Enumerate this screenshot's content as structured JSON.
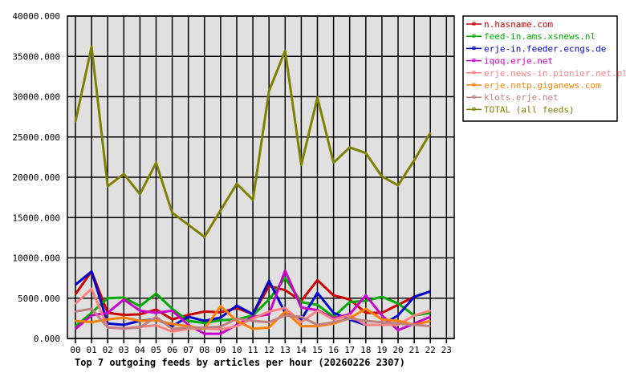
{
  "chart_data": {
    "type": "line",
    "title": "Top 7 outgoing feeds by articles per hour (20260226 2307)",
    "xlabel": "",
    "ylabel": "",
    "ylim": [
      0,
      40000
    ],
    "y_ticks": [
      "0.000",
      "5000.000",
      "10000.000",
      "15000.000",
      "20000.000",
      "25000.000",
      "30000.000",
      "35000.000",
      "40000.000"
    ],
    "x_ticks": [
      "00",
      "01",
      "02",
      "03",
      "04",
      "05",
      "06",
      "07",
      "08",
      "09",
      "10",
      "11",
      "12",
      "13",
      "14",
      "15",
      "16",
      "17",
      "18",
      "19",
      "20",
      "21",
      "22",
      "23"
    ],
    "grid": true,
    "legend_position": "right",
    "plot_background": "#e0e0e0",
    "series": [
      {
        "name": "n.hasname.com",
        "color": "#cc0000",
        "values": [
          5500,
          8320,
          3180,
          2920,
          3000,
          3590,
          2370,
          2920,
          3340,
          3250,
          3780,
          3000,
          6500,
          6000,
          4670,
          7230,
          5350,
          4840,
          3180,
          3180,
          4180,
          5170,
          5840
        ]
      },
      {
        "name": "feed-in.ams.xsnews.nl",
        "color": "#00aa00",
        "values": [
          1530,
          3180,
          5000,
          5080,
          4010,
          5570,
          3680,
          2190,
          1920,
          2260,
          2360,
          2860,
          4840,
          7500,
          4510,
          4180,
          2690,
          4510,
          4670,
          5170,
          4340,
          2860,
          3180
        ]
      },
      {
        "name": "erje-in.feeder.ecngs.de",
        "color": "#0000cc",
        "values": [
          6660,
          8320,
          1850,
          1690,
          2190,
          2360,
          1530,
          2690,
          2190,
          2590,
          4080,
          3000,
          7160,
          3180,
          2360,
          5670,
          3180,
          2360,
          1690,
          1690,
          2860,
          5170,
          5840
        ]
      },
      {
        "name": "iqoq.erje.net",
        "color": "#cc00cc",
        "values": [
          1190,
          2860,
          3180,
          4840,
          3450,
          3180,
          3450,
          1690,
          590,
          590,
          1690,
          2690,
          3000,
          8420,
          3840,
          3510,
          2520,
          3000,
          5350,
          2860,
          1030,
          1850,
          2690
        ]
      },
      {
        "name": "erje.news-in.pionier.net.pl",
        "color": "#ff8080",
        "values": [
          4310,
          6170,
          1360,
          1260,
          1460,
          1630,
          860,
          1190,
          1260,
          1130,
          1530,
          2460,
          3340,
          3780,
          2020,
          3450,
          2360,
          2860,
          1690,
          1690,
          1690,
          2860,
          3450
        ]
      },
      {
        "name": "erje.nntp.giganews.com",
        "color": "#ff8000",
        "values": [
          2190,
          2030,
          2360,
          2590,
          2190,
          2260,
          1790,
          1530,
          1190,
          4010,
          2190,
          1190,
          1360,
          3340,
          1530,
          1530,
          1850,
          2520,
          3680,
          2360,
          2190,
          1690,
          2170
        ]
      },
      {
        "name": "klots.erje.net",
        "color": "#c08080",
        "values": [
          3340,
          3680,
          1360,
          1260,
          1360,
          2690,
          1190,
          1360,
          1360,
          1460,
          2460,
          2190,
          2020,
          2860,
          2690,
          1690,
          2020,
          2460,
          2190,
          2020,
          1850,
          1690,
          1530
        ]
      },
      {
        "name": "TOTAL (all feeds)",
        "color": "#808000",
        "values": [
          26900,
          36200,
          18900,
          20400,
          17900,
          21800,
          15600,
          14100,
          12600,
          15900,
          19200,
          17200,
          30700,
          35700,
          21500,
          29900,
          21800,
          23700,
          23000,
          20100,
          19000,
          22100,
          25500
        ]
      }
    ]
  }
}
